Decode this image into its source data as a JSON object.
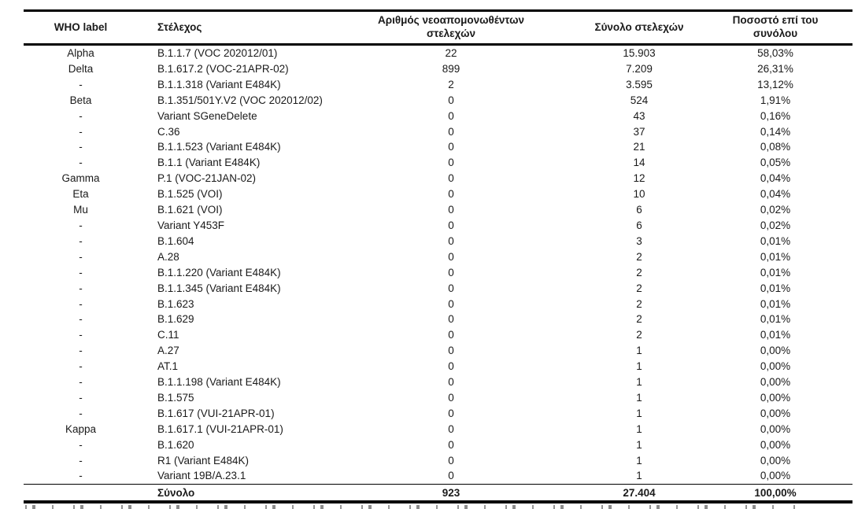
{
  "table": {
    "columns": {
      "who_label": "WHO label",
      "strain": "Στέλεχος",
      "new_isolates": "Αριθμός νεοαπομονωθέντων στελεχών",
      "total_strains": "Σύνολο στελεχών",
      "pct_of_total": "Ποσοστό επί του συνόλου"
    },
    "rows": [
      {
        "who": "Alpha",
        "strain": "B.1.1.7 (VOC 202012/01)",
        "isolates": "22",
        "total": "15.903",
        "pct": "58,03%"
      },
      {
        "who": "Delta",
        "strain": "B.1.617.2 (VOC-21APR-02)",
        "isolates": "899",
        "total": "7.209",
        "pct": "26,31%"
      },
      {
        "who": "-",
        "strain": "B.1.1.318 (Variant E484K)",
        "isolates": "2",
        "total": "3.595",
        "pct": "13,12%"
      },
      {
        "who": "Beta",
        "strain": "B.1.351/501Y.V2 (VOC 202012/02)",
        "isolates": "0",
        "total": "524",
        "pct": "1,91%"
      },
      {
        "who": "-",
        "strain": "Variant SGeneDelete",
        "isolates": "0",
        "total": "43",
        "pct": "0,16%"
      },
      {
        "who": "-",
        "strain": "C.36",
        "isolates": "0",
        "total": "37",
        "pct": "0,14%"
      },
      {
        "who": "-",
        "strain": "B.1.1.523 (Variant E484K)",
        "isolates": "0",
        "total": "21",
        "pct": "0,08%"
      },
      {
        "who": "-",
        "strain": "B.1.1 (Variant E484K)",
        "isolates": "0",
        "total": "14",
        "pct": "0,05%"
      },
      {
        "who": "Gamma",
        "strain": "P.1 (VOC-21JAN-02)",
        "isolates": "0",
        "total": "12",
        "pct": "0,04%"
      },
      {
        "who": "Eta",
        "strain": "B.1.525 (VOI)",
        "isolates": "0",
        "total": "10",
        "pct": "0,04%"
      },
      {
        "who": "Mu",
        "strain": "B.1.621 (VOI)",
        "isolates": "0",
        "total": "6",
        "pct": "0,02%"
      },
      {
        "who": "-",
        "strain": "Variant Y453F",
        "isolates": "0",
        "total": "6",
        "pct": "0,02%"
      },
      {
        "who": "-",
        "strain": "B.1.604",
        "isolates": "0",
        "total": "3",
        "pct": "0,01%"
      },
      {
        "who": "-",
        "strain": "A.28",
        "isolates": "0",
        "total": "2",
        "pct": "0,01%"
      },
      {
        "who": "-",
        "strain": "B.1.1.220 (Variant E484K)",
        "isolates": "0",
        "total": "2",
        "pct": "0,01%"
      },
      {
        "who": "-",
        "strain": "B.1.1.345 (Variant E484K)",
        "isolates": "0",
        "total": "2",
        "pct": "0,01%"
      },
      {
        "who": "-",
        "strain": "B.1.623",
        "isolates": "0",
        "total": "2",
        "pct": "0,01%"
      },
      {
        "who": "-",
        "strain": "B.1.629",
        "isolates": "0",
        "total": "2",
        "pct": "0,01%"
      },
      {
        "who": "-",
        "strain": "C.11",
        "isolates": "0",
        "total": "2",
        "pct": "0,01%"
      },
      {
        "who": "-",
        "strain": "A.27",
        "isolates": "0",
        "total": "1",
        "pct": "0,00%"
      },
      {
        "who": "-",
        "strain": "AT.1",
        "isolates": "0",
        "total": "1",
        "pct": "0,00%"
      },
      {
        "who": "-",
        "strain": "B.1.1.198 (Variant E484K)",
        "isolates": "0",
        "total": "1",
        "pct": "0,00%"
      },
      {
        "who": "-",
        "strain": "B.1.575",
        "isolates": "0",
        "total": "1",
        "pct": "0,00%"
      },
      {
        "who": "-",
        "strain": "B.1.617 (VUI-21APR-01)",
        "isolates": "0",
        "total": "1",
        "pct": "0,00%"
      },
      {
        "who": "Kappa",
        "strain": "B.1.617.1 (VUI-21APR-01)",
        "isolates": "0",
        "total": "1",
        "pct": "0,00%"
      },
      {
        "who": "-",
        "strain": "B.1.620",
        "isolates": "0",
        "total": "1",
        "pct": "0,00%"
      },
      {
        "who": "-",
        "strain": "R1 (Variant E484K)",
        "isolates": "0",
        "total": "1",
        "pct": "0,00%"
      },
      {
        "who": "-",
        "strain": "Variant 19B/A.23.1",
        "isolates": "0",
        "total": "1",
        "pct": "0,00%"
      }
    ],
    "total_row": {
      "who": "",
      "label": "Σύνολο",
      "isolates": "923",
      "total": "27.404",
      "pct": "100,00%"
    }
  }
}
